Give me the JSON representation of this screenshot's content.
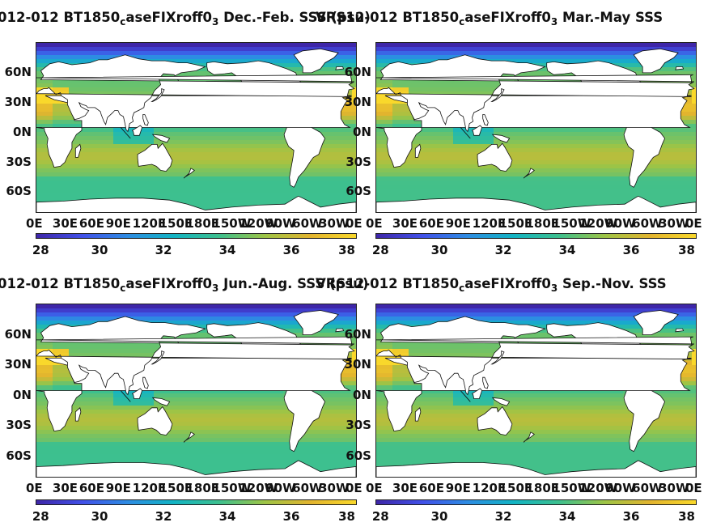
{
  "panels": [
    {
      "id": "p1",
      "title_a": "012-012 BT1850",
      "title_sub": "c",
      "title_b": "aseFIXroff0",
      "title_sub2": "3",
      "title_c": " Dec.-Feb. SSS (psu)"
    },
    {
      "id": "p2",
      "title_a": "VRS12-012 BT1850",
      "title_sub": "c",
      "title_b": "aseFIXroff0",
      "title_sub2": "3",
      "title_c": " Mar.-May SSS"
    },
    {
      "id": "p3",
      "title_a": "012-012 BT1850",
      "title_sub": "c",
      "title_b": "aseFIXroff0",
      "title_sub2": "3",
      "title_c": " Jun.-Aug. SSS (psu)"
    },
    {
      "id": "p4",
      "title_a": "VRS12-012 BT1850",
      "title_sub": "c",
      "title_b": "aseFIXroff0",
      "title_sub2": "3",
      "title_c": " Sep.-Nov. SSS"
    }
  ],
  "axes": {
    "lat_labels": [
      "60N",
      "30N",
      "0N",
      "30S",
      "60S"
    ],
    "lon_labels": [
      "0E",
      "30E",
      "60E",
      "90E",
      "120E",
      "150E",
      "180E",
      "150W",
      "120W",
      "90W",
      "60W",
      "30W",
      "0E"
    ]
  },
  "colorbar": {
    "ticks": [
      "28",
      "30",
      "32",
      "34",
      "36",
      "38"
    ],
    "range": [
      28,
      38
    ],
    "colormap": [
      "#3e26a8",
      "#4150e8",
      "#2d8ce3",
      "#12b4c4",
      "#3dc08e",
      "#9dc446",
      "#e2b42e",
      "#f9d82b"
    ]
  },
  "chart_data": {
    "type": "heatmap",
    "variable": "SSS",
    "units": "psu",
    "seasons": [
      "Dec.-Feb.",
      "Mar.-May",
      "Jun.-Aug.",
      "Sep.-Nov."
    ],
    "lon_range": [
      0,
      360
    ],
    "lat_range": [
      -80,
      90
    ],
    "value_range": [
      28,
      38
    ]
  }
}
